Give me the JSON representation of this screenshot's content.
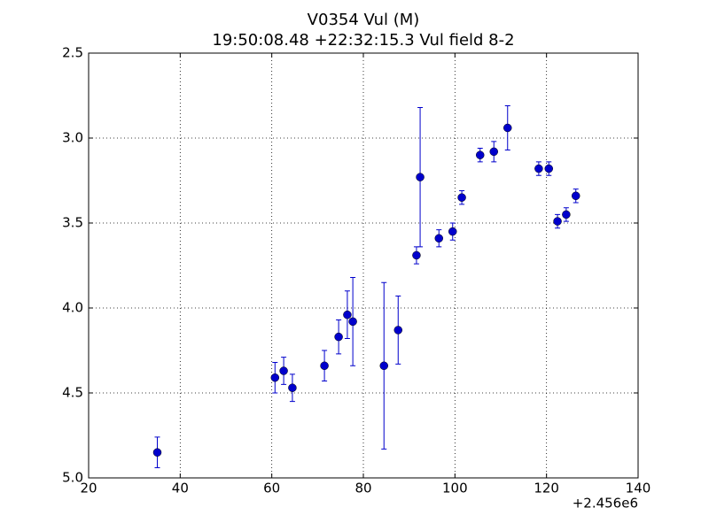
{
  "chart_data": {
    "type": "errorbar",
    "title": "V0354 Vul (M)",
    "subtitle": "19:50:08.48 +22:32:15.3 Vul field 8-2",
    "x_offset_label": "+2.456e6",
    "x": [
      35,
      60.7,
      62.6,
      64.5,
      71.5,
      74.6,
      76.5,
      77.7,
      84.5,
      87.6,
      91.6,
      92.4,
      96.5,
      99.5,
      101.5,
      105.5,
      108.5,
      111.5,
      118.3,
      120.5,
      122.4,
      124.3,
      126.4
    ],
    "values": [
      4.85,
      4.41,
      4.37,
      4.47,
      4.34,
      4.17,
      4.04,
      4.08,
      4.34,
      4.13,
      3.69,
      3.23,
      3.59,
      3.55,
      3.35,
      3.1,
      3.08,
      2.94,
      3.18,
      3.18,
      3.49,
      3.45,
      3.34
    ],
    "errors": [
      0.09,
      0.09,
      0.08,
      0.08,
      0.09,
      0.1,
      0.14,
      0.26,
      0.49,
      0.2,
      0.05,
      0.41,
      0.05,
      0.05,
      0.04,
      0.04,
      0.06,
      0.13,
      0.04,
      0.04,
      0.04,
      0.04,
      0.04
    ],
    "color": "#0000cc",
    "xlim": [
      20,
      140
    ],
    "xticks": [
      20,
      40,
      60,
      80,
      100,
      120,
      140
    ],
    "ylim": [
      5.0,
      2.5
    ],
    "yticks": [
      2.5,
      {
        "value": 3,
        "label": "3.0"
      },
      3.5,
      {
        "value": 4,
        "label": "4.0"
      },
      4.5,
      {
        "value": 5,
        "label": "5.0"
      }
    ],
    "grid": true
  }
}
